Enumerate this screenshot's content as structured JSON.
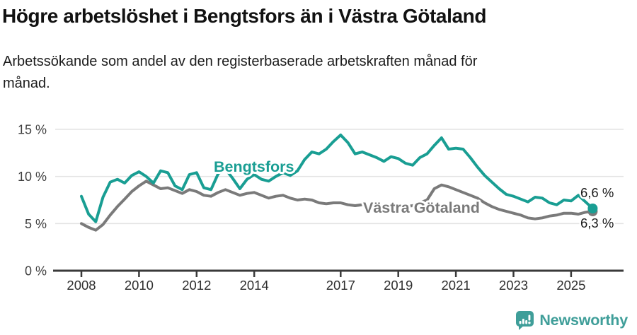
{
  "header": {
    "title": "Högre arbetslöshet i Bengtsfors än i Västra Götaland",
    "subtitle_line1": "Arbetssökande som andel av den registerbaserade arbetskraften månad för",
    "subtitle_line2": "månad."
  },
  "chart_data": {
    "type": "line",
    "title": "Högre arbetslöshet i Bengtsfors än i Västra Götaland",
    "subtitle": "Arbetssökande som andel av den registerbaserade arbetskraften månad för månad.",
    "x_start": 2008,
    "points_per_year": 4,
    "xlim": [
      2007.7,
      2026.3
    ],
    "ylim": [
      0,
      15
    ],
    "grid": "horizontal",
    "legend_position": "inline-labels",
    "x_ticks": [
      {
        "year": 2008,
        "label": "2008"
      },
      {
        "year": 2010,
        "label": "2010"
      },
      {
        "year": 2012,
        "label": "2012"
      },
      {
        "year": 2014,
        "label": "2014"
      },
      {
        "year": 2017,
        "label": "2017"
      },
      {
        "year": 2019,
        "label": "2019"
      },
      {
        "year": 2021,
        "label": "2021"
      },
      {
        "year": 2023,
        "label": "2023"
      },
      {
        "year": 2025,
        "label": "2025"
      }
    ],
    "y_ticks": [
      {
        "value": 0,
        "label": "0 %"
      },
      {
        "value": 5,
        "label": "5 %"
      },
      {
        "value": 10,
        "label": "10 %"
      },
      {
        "value": 15,
        "label": "15 %"
      }
    ],
    "series": [
      {
        "name": "Bengtsfors",
        "color": "#199e93",
        "end_label": "6,6 %",
        "values": [
          7.9,
          6.0,
          5.2,
          7.8,
          9.4,
          9.7,
          9.3,
          10.1,
          10.5,
          10.0,
          9.3,
          10.6,
          10.4,
          9.0,
          8.6,
          10.2,
          10.4,
          8.8,
          8.6,
          10.3,
          10.8,
          9.8,
          8.7,
          9.7,
          10.2,
          9.7,
          9.5,
          10.0,
          10.4,
          10.1,
          10.6,
          11.8,
          12.6,
          12.4,
          12.9,
          13.7,
          14.4,
          13.6,
          12.4,
          12.6,
          12.3,
          12.0,
          11.6,
          12.1,
          11.9,
          11.4,
          11.2,
          12.0,
          12.4,
          13.3,
          14.1,
          12.9,
          13.0,
          12.9,
          12.0,
          11.0,
          10.1,
          9.4,
          8.7,
          8.1,
          7.9,
          7.6,
          7.3,
          7.8,
          7.7,
          7.2,
          7.0,
          7.5,
          7.4,
          8.0,
          7.3,
          6.6
        ]
      },
      {
        "name": "Västra Götaland",
        "color": "#7a7a7a",
        "end_label": "6,3 %",
        "values": [
          5.0,
          4.6,
          4.3,
          4.9,
          5.9,
          6.8,
          7.6,
          8.4,
          9.0,
          9.5,
          9.1,
          8.7,
          8.8,
          8.5,
          8.2,
          8.6,
          8.4,
          8.0,
          7.9,
          8.3,
          8.6,
          8.3,
          8.0,
          8.2,
          8.3,
          8.0,
          7.7,
          7.9,
          8.0,
          7.7,
          7.5,
          7.6,
          7.5,
          7.2,
          7.1,
          7.2,
          7.2,
          7.0,
          6.9,
          7.0,
          6.9,
          6.8,
          6.7,
          6.8,
          6.9,
          6.8,
          6.9,
          7.2,
          7.5,
          8.7,
          9.1,
          8.9,
          8.6,
          8.3,
          8.0,
          7.7,
          7.2,
          6.8,
          6.5,
          6.3,
          6.1,
          5.9,
          5.6,
          5.5,
          5.6,
          5.8,
          5.9,
          6.1,
          6.1,
          6.0,
          6.2,
          6.3
        ]
      }
    ],
    "colors": {
      "bengtsfors_line": "#199e93",
      "vastra_gotaland_line": "#7a7a7a",
      "gridline": "#e3e3e3",
      "axis": "#3a3a3a",
      "value_label_text": "#1a1a1a"
    }
  },
  "footer": {
    "brand": "Newsworthy",
    "brand_color": "#3f9e99"
  }
}
